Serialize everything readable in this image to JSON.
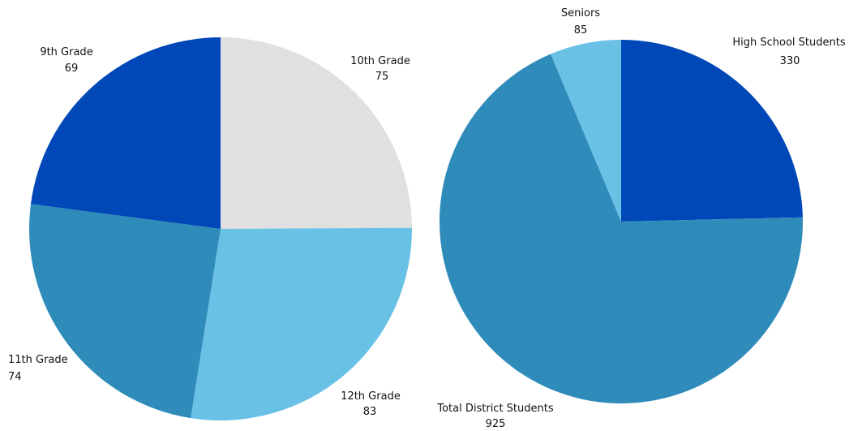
{
  "chart_data": [
    {
      "type": "pie",
      "title": "",
      "slices": [
        {
          "label": "10th Grade",
          "value": 75,
          "color": "#e0e0e0"
        },
        {
          "label": "12th Grade",
          "value": 83,
          "color": "#6ac1e6"
        },
        {
          "label": "11th Grade",
          "value": 74,
          "color": "#2e8bba"
        },
        {
          "label": "9th Grade",
          "value": 69,
          "color": "#0047b8"
        }
      ]
    },
    {
      "type": "pie",
      "title": "",
      "slices": [
        {
          "label": "High School Students",
          "value": 330,
          "color": "#0047b8"
        },
        {
          "label": "Total District Students",
          "value": 925,
          "color": "#2e8bba"
        },
        {
          "label": "Seniors",
          "value": 85,
          "color": "#6ac1e6"
        }
      ]
    }
  ]
}
